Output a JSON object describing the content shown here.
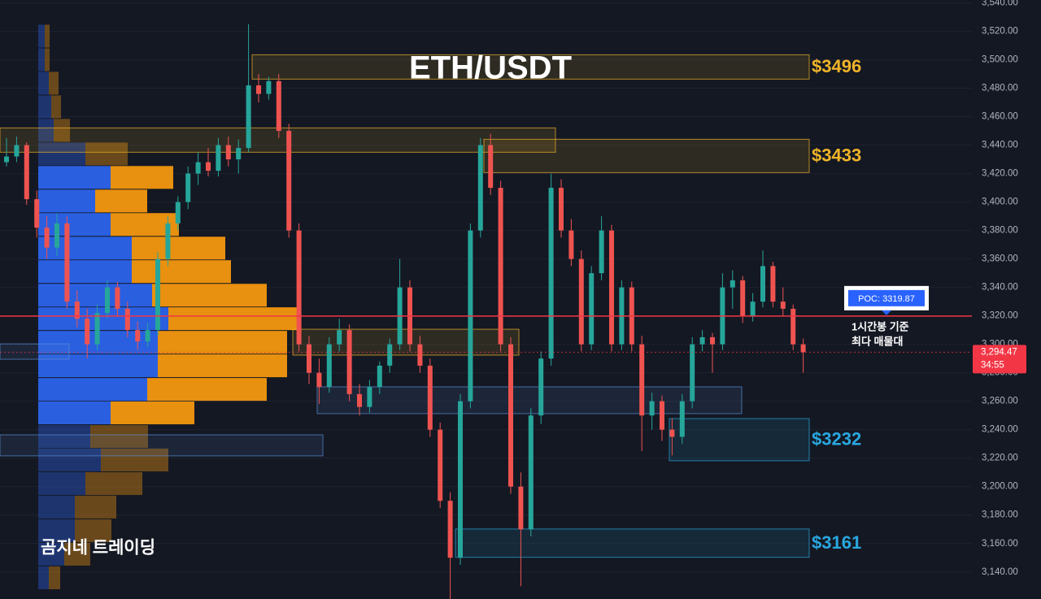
{
  "chart_data": {
    "type": "candlestick",
    "title": "ETH/USDT",
    "watermark": "곰지네 트레이딩",
    "ylim": [
      3121,
      3542
    ],
    "yticks": [
      {
        "value": 3140,
        "label": "3,140.00"
      },
      {
        "value": 3160,
        "label": "3,160.00"
      },
      {
        "value": 3180,
        "label": "3,180.00"
      },
      {
        "value": 3200,
        "label": "3,200.00"
      },
      {
        "value": 3220,
        "label": "3,220.00"
      },
      {
        "value": 3240,
        "label": "3,240.00"
      },
      {
        "value": 3260,
        "label": "3,260.00"
      },
      {
        "value": 3280,
        "label": "3,280.00"
      },
      {
        "value": 3300,
        "label": "3,300.00"
      },
      {
        "value": 3320,
        "label": "3,320.00"
      },
      {
        "value": 3340,
        "label": "3,340.00"
      },
      {
        "value": 3360,
        "label": "3,360.00"
      },
      {
        "value": 3380,
        "label": "3,380.00"
      },
      {
        "value": 3400,
        "label": "3,400.00"
      },
      {
        "value": 3420,
        "label": "3,420.00"
      },
      {
        "value": 3440,
        "label": "3,440.00"
      },
      {
        "value": 3460,
        "label": "3,460.00"
      },
      {
        "value": 3480,
        "label": "3,480.00"
      },
      {
        "value": 3500,
        "label": "3,500.00"
      },
      {
        "value": 3520,
        "label": "3,520.00"
      },
      {
        "value": 3540,
        "label": "3,540.00"
      }
    ],
    "grid": true,
    "colors": {
      "up": "#26a69a",
      "down": "#ef5350"
    },
    "candles": [
      [
        3428,
        3445,
        3425,
        3432
      ],
      [
        3432,
        3446,
        3428,
        3440
      ],
      [
        3440,
        3442,
        3398,
        3402
      ],
      [
        3402,
        3408,
        3375,
        3382
      ],
      [
        3382,
        3390,
        3360,
        3368
      ],
      [
        3368,
        3392,
        3362,
        3385
      ],
      [
        3385,
        3390,
        3325,
        3330
      ],
      [
        3330,
        3338,
        3312,
        3318
      ],
      [
        3318,
        3325,
        3290,
        3300
      ],
      [
        3300,
        3328,
        3296,
        3322
      ],
      [
        3322,
        3345,
        3318,
        3340
      ],
      [
        3340,
        3344,
        3320,
        3325
      ],
      [
        3325,
        3330,
        3305,
        3310
      ],
      [
        3310,
        3316,
        3296,
        3302
      ],
      [
        3302,
        3315,
        3298,
        3310
      ],
      [
        3310,
        3365,
        3306,
        3360
      ],
      [
        3360,
        3390,
        3355,
        3385
      ],
      [
        3385,
        3404,
        3380,
        3400
      ],
      [
        3400,
        3425,
        3395,
        3420
      ],
      [
        3420,
        3435,
        3412,
        3428
      ],
      [
        3428,
        3438,
        3418,
        3422
      ],
      [
        3422,
        3445,
        3418,
        3440
      ],
      [
        3440,
        3446,
        3425,
        3430
      ],
      [
        3430,
        3444,
        3420,
        3438
      ],
      [
        3438,
        3525,
        3435,
        3482
      ],
      [
        3482,
        3490,
        3470,
        3476
      ],
      [
        3476,
        3488,
        3472,
        3485
      ],
      [
        3485,
        3490,
        3445,
        3450
      ],
      [
        3450,
        3455,
        3375,
        3380
      ],
      [
        3380,
        3385,
        3295,
        3300
      ],
      [
        3300,
        3306,
        3272,
        3280
      ],
      [
        3280,
        3290,
        3258,
        3270
      ],
      [
        3270,
        3305,
        3266,
        3300
      ],
      [
        3300,
        3318,
        3295,
        3310
      ],
      [
        3310,
        3314,
        3260,
        3265
      ],
      [
        3265,
        3272,
        3250,
        3256
      ],
      [
        3256,
        3275,
        3252,
        3270
      ],
      [
        3270,
        3288,
        3265,
        3285
      ],
      [
        3285,
        3304,
        3280,
        3300
      ],
      [
        3300,
        3360,
        3296,
        3340
      ],
      [
        3340,
        3345,
        3295,
        3300
      ],
      [
        3300,
        3306,
        3280,
        3285
      ],
      [
        3285,
        3290,
        3235,
        3240
      ],
      [
        3240,
        3245,
        3185,
        3190
      ],
      [
        3190,
        3196,
        3120,
        3150
      ],
      [
        3150,
        3265,
        3145,
        3260
      ],
      [
        3260,
        3385,
        3255,
        3380
      ],
      [
        3380,
        3445,
        3375,
        3440
      ],
      [
        3440,
        3448,
        3405,
        3410
      ],
      [
        3410,
        3415,
        3295,
        3300
      ],
      [
        3300,
        3305,
        3195,
        3200
      ],
      [
        3200,
        3210,
        3130,
        3170
      ],
      [
        3170,
        3255,
        3165,
        3250
      ],
      [
        3250,
        3295,
        3244,
        3290
      ],
      [
        3290,
        3420,
        3285,
        3410
      ],
      [
        3410,
        3416,
        3375,
        3380
      ],
      [
        3380,
        3388,
        3355,
        3360
      ],
      [
        3360,
        3366,
        3295,
        3300
      ],
      [
        3300,
        3355,
        3296,
        3350
      ],
      [
        3350,
        3390,
        3345,
        3380
      ],
      [
        3380,
        3384,
        3295,
        3300
      ],
      [
        3300,
        3345,
        3296,
        3340
      ],
      [
        3340,
        3344,
        3295,
        3300
      ],
      [
        3300,
        3306,
        3225,
        3250
      ],
      [
        3250,
        3266,
        3240,
        3260
      ],
      [
        3260,
        3264,
        3232,
        3240
      ],
      [
        3240,
        3248,
        3222,
        3235
      ],
      [
        3235,
        3265,
        3230,
        3260
      ],
      [
        3260,
        3305,
        3255,
        3300
      ],
      [
        3300,
        3310,
        3295,
        3305
      ],
      [
        3305,
        3308,
        3280,
        3300
      ],
      [
        3300,
        3350,
        3296,
        3340
      ],
      [
        3340,
        3352,
        3325,
        3345
      ],
      [
        3345,
        3348,
        3315,
        3320
      ],
      [
        3320,
        3336,
        3316,
        3330
      ],
      [
        3330,
        3366,
        3326,
        3355
      ],
      [
        3355,
        3358,
        3326,
        3330
      ],
      [
        3330,
        3340,
        3320,
        3325
      ],
      [
        3325,
        3328,
        3296,
        3300
      ],
      [
        3300,
        3304,
        3280,
        3294.47
      ]
    ],
    "volume_profile": {
      "levels": [
        3516.6,
        3500.0,
        3483.5,
        3466.9,
        3450.4,
        3433.8,
        3417.3,
        3400.7,
        3384.2,
        3367.6,
        3351.1,
        3334.5,
        3318.0,
        3301.4,
        3284.9,
        3268.3,
        3251.8,
        3235.2,
        3218.7,
        3202.1,
        3185.6,
        3169.0,
        3152.5,
        3135.9
      ],
      "buy": [
        8,
        8,
        13,
        16,
        19,
        58,
        89,
        70,
        89,
        115,
        115,
        140,
        160,
        147,
        147,
        134,
        89,
        64,
        77,
        58,
        45,
        45,
        32,
        13
      ],
      "sell": [
        6,
        6,
        12,
        12,
        20,
        52,
        77,
        64,
        84,
        115,
        122,
        141,
        158,
        159,
        159,
        147,
        103,
        71,
        83,
        70,
        51,
        45,
        32,
        14
      ],
      "value_area": [
        3251.8,
        3417.3
      ],
      "colors": {
        "buy": "#2a5fe0",
        "sell": "#e8900f"
      }
    },
    "zones": [
      {
        "label": "$3496",
        "top": 3503.5,
        "bottom": 3486.4,
        "color": "#f0b429"
      },
      {
        "label": "$3433",
        "top": 3444.1,
        "bottom": 3420.7,
        "color": "#f0b429"
      },
      {
        "label": "$3232",
        "top": 3247.8,
        "bottom": 3218.2,
        "color": "#29a8e0"
      },
      {
        "label": "$3161",
        "top": 3170.2,
        "bottom": 3150.3,
        "color": "#29a8e0"
      },
      {
        "top": 3452.1,
        "bottom": 3435.0,
        "color": "#f0b429"
      },
      {
        "top": 3310.6,
        "bottom": 3292.4,
        "color": "#f0b429"
      },
      {
        "top": 3270.1,
        "bottom": 3251.3,
        "color": "#5b8fd6"
      },
      {
        "top": 3236.4,
        "bottom": 3221.6,
        "color": "#5b8fd6"
      },
      {
        "top": 3300.3,
        "bottom": 3289.5,
        "color": "#5b8fd6"
      }
    ],
    "poc": {
      "value": 3319.87,
      "label": "POC: 3319.87",
      "color": "#f23645",
      "note": [
        "1시간봉 기준",
        "최다 매물대"
      ]
    },
    "last_price": {
      "value": 3294.47,
      "label": "3,294.47",
      "countdown": "34:55",
      "color": "#f23645"
    }
  }
}
